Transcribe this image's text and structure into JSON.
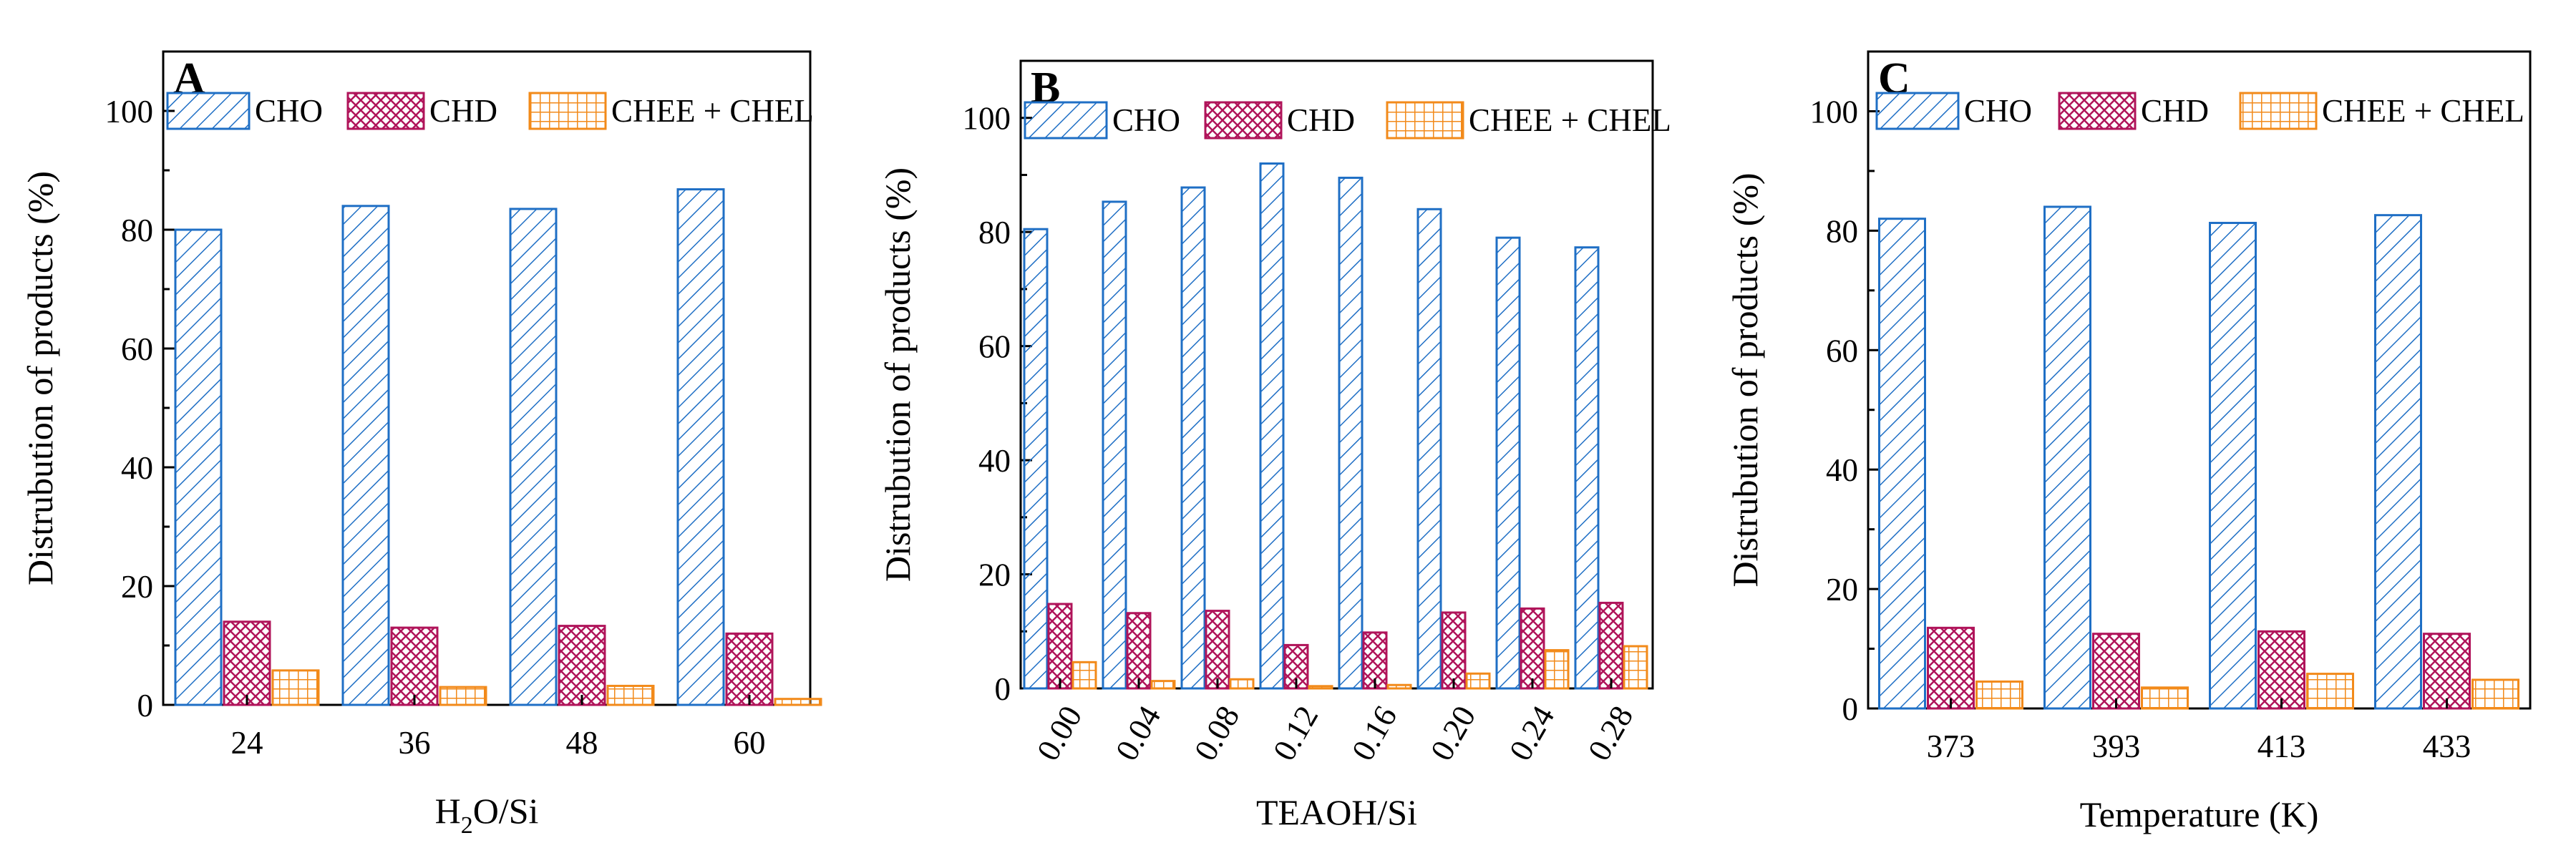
{
  "colors": {
    "cho": "#1f6fc5",
    "chd": "#b0145a",
    "chee": "#f28a1a"
  },
  "legend_labels": {
    "cho": "CHO",
    "chd": "CHD",
    "chee": "CHEE + CHEL"
  },
  "chart_data": [
    {
      "type": "bar",
      "panel": "A",
      "categories": [
        "24",
        "36",
        "48",
        "60"
      ],
      "series": [
        {
          "name": "CHO",
          "values": [
            80.0,
            84.0,
            83.5,
            86.8
          ]
        },
        {
          "name": "CHD",
          "values": [
            14.0,
            13.0,
            13.3,
            12.0
          ]
        },
        {
          "name": "CHEE + CHEL",
          "values": [
            5.8,
            3.0,
            3.2,
            1.0
          ]
        }
      ],
      "xlabel": {
        "main": "H",
        "sub": "2",
        "rest": "O/Si"
      },
      "ylabel": "Distrubution of products (%)",
      "ylim": [
        0,
        110
      ],
      "yticks": [
        0,
        20,
        40,
        60,
        80,
        100
      ]
    },
    {
      "type": "bar",
      "panel": "B",
      "categories": [
        "0.00",
        "0.04",
        "0.08",
        "0.12",
        "0.16",
        "0.20",
        "0.24",
        "0.28"
      ],
      "series": [
        {
          "name": "CHO",
          "values": [
            80.5,
            85.3,
            87.8,
            92.0,
            89.5,
            84.0,
            79.0,
            77.3
          ]
        },
        {
          "name": "CHD",
          "values": [
            14.8,
            13.2,
            13.6,
            7.6,
            9.8,
            13.3,
            14.0,
            15.0
          ]
        },
        {
          "name": "CHEE + CHEL",
          "values": [
            4.6,
            1.3,
            1.6,
            0.4,
            0.6,
            2.6,
            6.7,
            7.4
          ]
        }
      ],
      "xlabel": "TEAOH/Si",
      "ylabel": "Distrubution of products (%)",
      "ylim": [
        0,
        110
      ],
      "yticks": [
        0,
        20,
        40,
        60,
        80,
        100
      ]
    },
    {
      "type": "bar",
      "panel": "C",
      "categories": [
        "373",
        "393",
        "413",
        "433"
      ],
      "series": [
        {
          "name": "CHO",
          "values": [
            82.0,
            84.0,
            81.3,
            82.6
          ]
        },
        {
          "name": "CHD",
          "values": [
            13.5,
            12.5,
            12.9,
            12.5
          ]
        },
        {
          "name": "CHEE + CHEL",
          "values": [
            4.5,
            3.5,
            5.8,
            4.8
          ]
        }
      ],
      "xlabel": "Temperature (K)",
      "ylabel": "Distrubution of products (%)",
      "ylim": [
        0,
        110
      ],
      "yticks": [
        0,
        20,
        40,
        60,
        80,
        100
      ]
    }
  ]
}
